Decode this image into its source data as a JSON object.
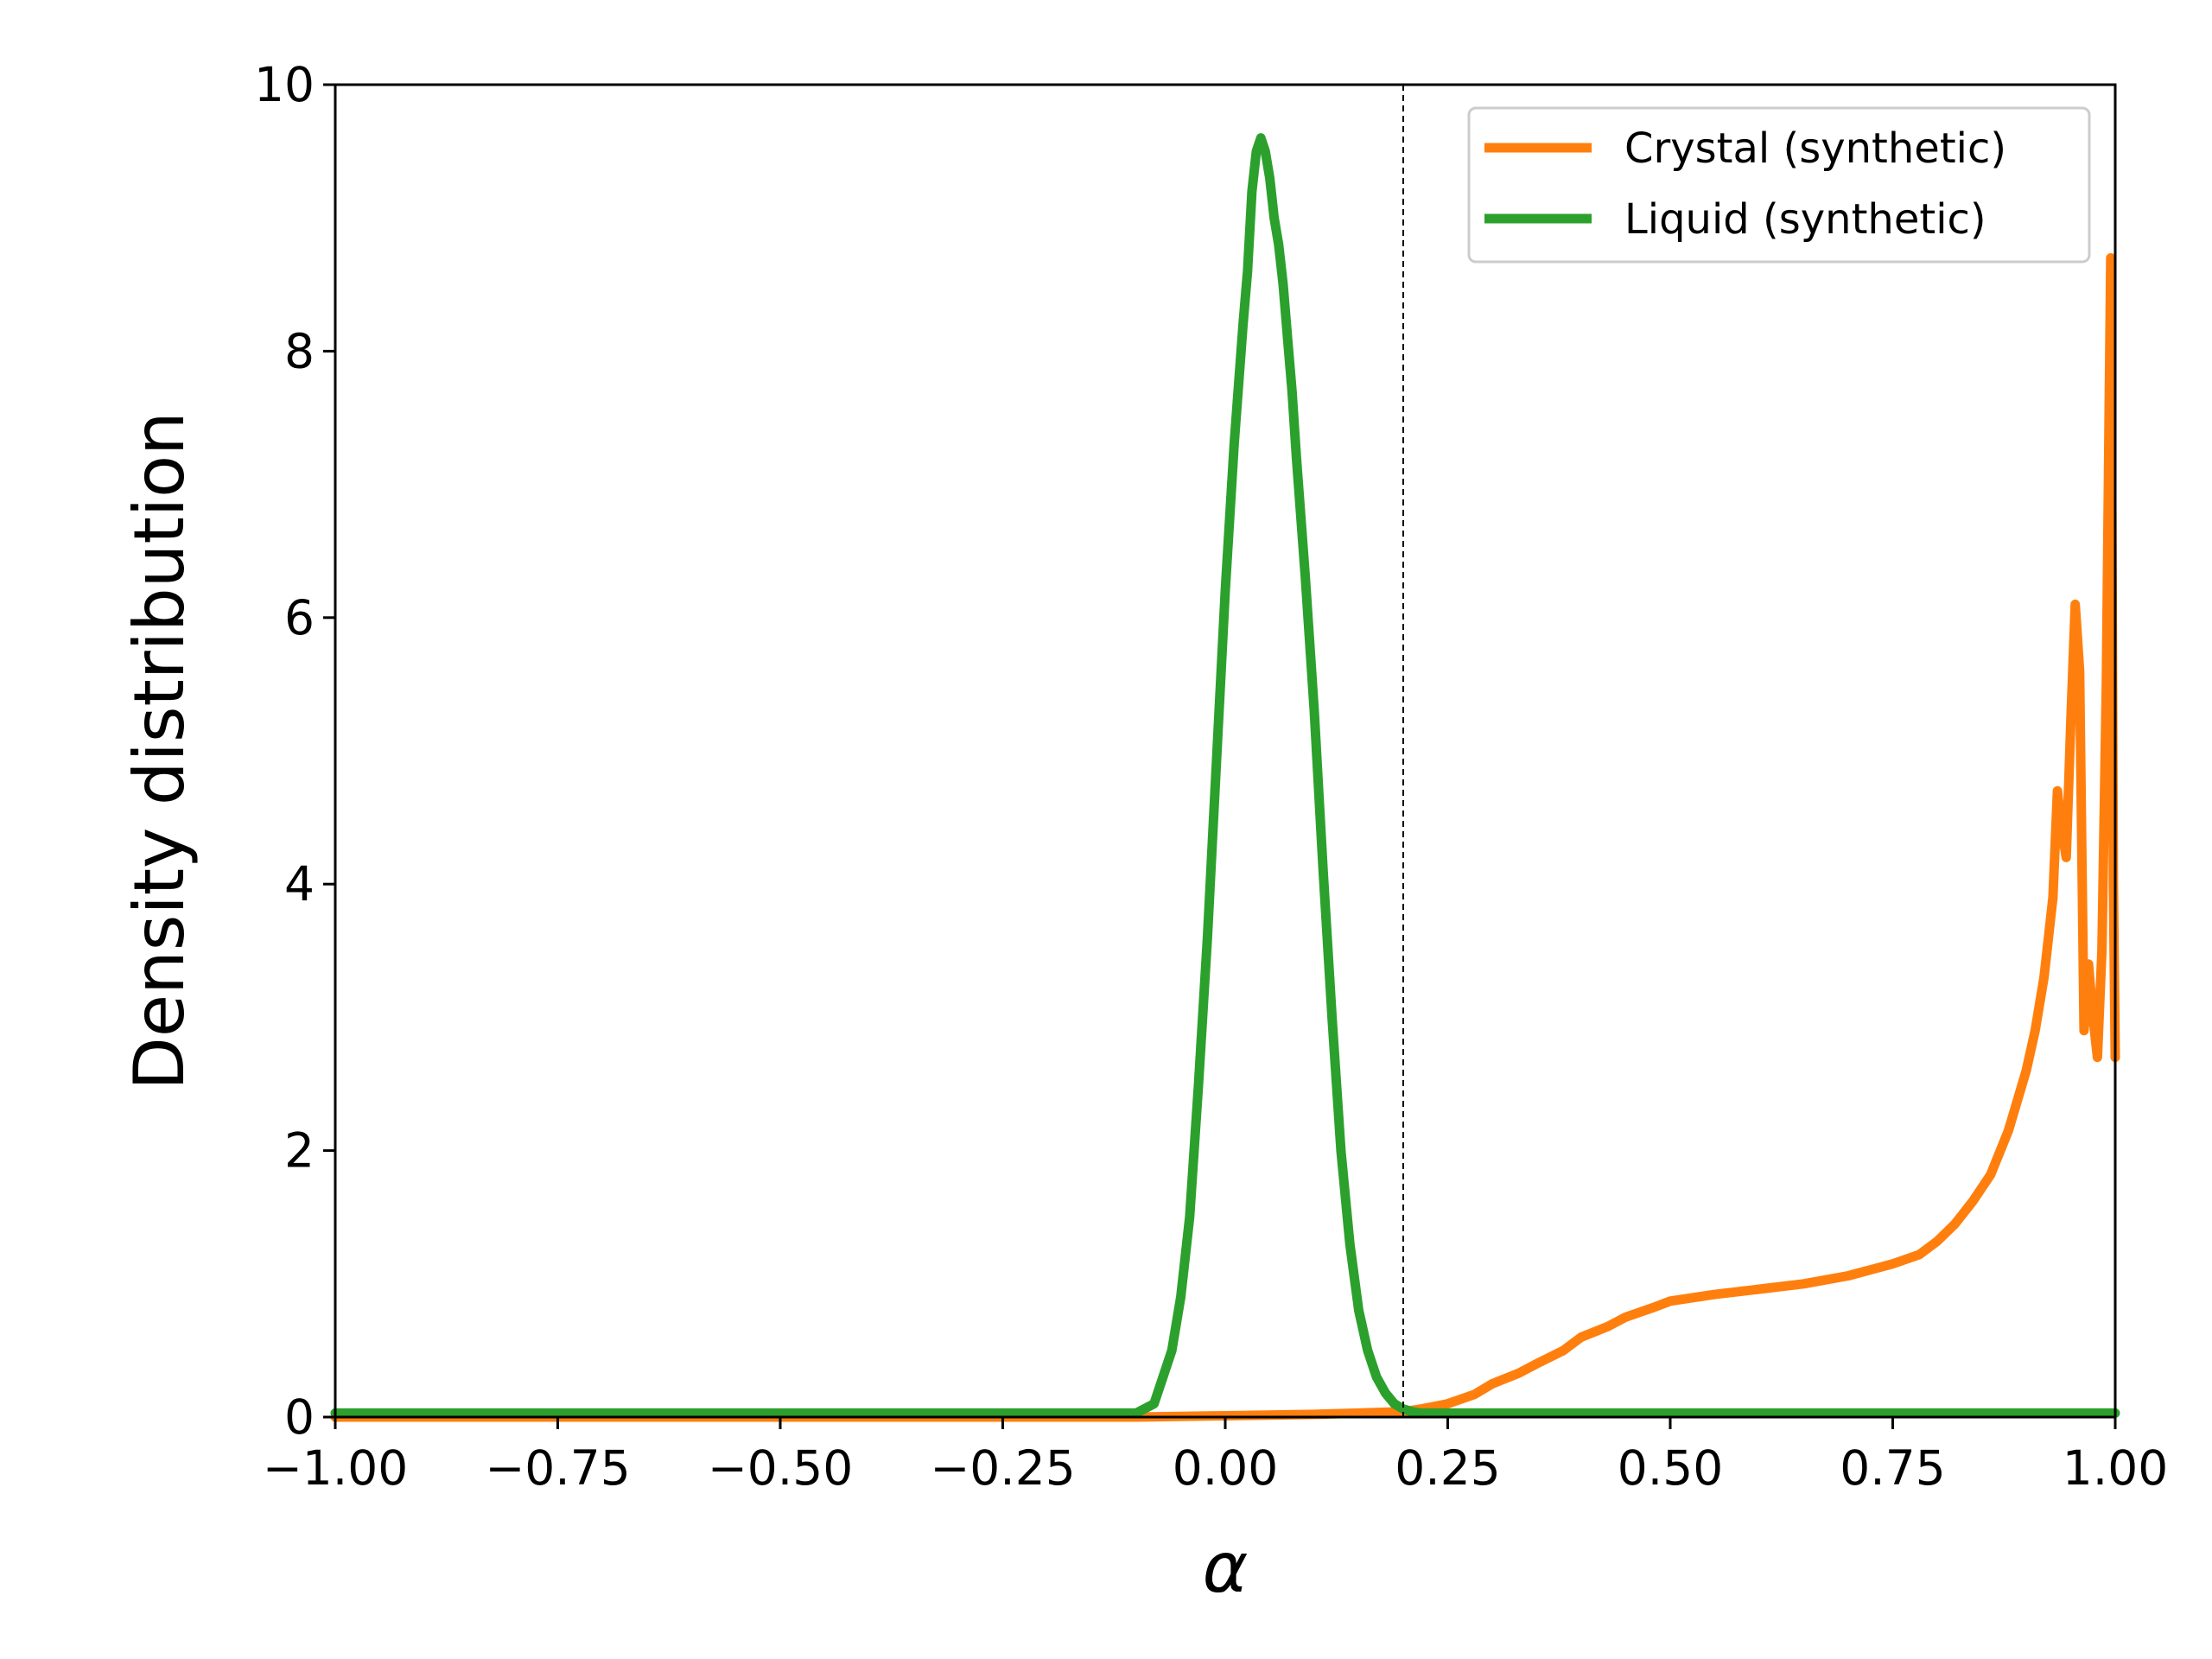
{
  "chart_data": {
    "type": "line",
    "xlabel": "α",
    "ylabel": "Density distribution",
    "xlim": [
      -1.0,
      1.0
    ],
    "ylim": [
      0,
      10
    ],
    "xticks": [
      "−1.00",
      "−0.75",
      "−0.50",
      "−0.25",
      "0.00",
      "0.25",
      "0.50",
      "0.75",
      "1.00"
    ],
    "xtick_values": [
      -1.0,
      -0.75,
      -0.5,
      -0.25,
      0.0,
      0.25,
      0.5,
      0.75,
      1.0
    ],
    "yticks": [
      "0",
      "2",
      "4",
      "6",
      "8",
      "10"
    ],
    "ytick_values": [
      0,
      2,
      4,
      6,
      8,
      10
    ],
    "grid": false,
    "legend_position": "top-right",
    "vline": {
      "x": 0.2,
      "style": "dashed",
      "color": "#000000"
    },
    "series": [
      {
        "name": "Crystal (synthetic)",
        "color": "#ff7f0e",
        "x": [
          -1.0,
          -0.5,
          -0.1,
          0.0,
          0.1,
          0.15,
          0.2,
          0.22,
          0.25,
          0.28,
          0.3,
          0.33,
          0.35,
          0.38,
          0.4,
          0.43,
          0.45,
          0.48,
          0.5,
          0.55,
          0.6,
          0.65,
          0.7,
          0.75,
          0.78,
          0.8,
          0.82,
          0.84,
          0.86,
          0.88,
          0.9,
          0.91,
          0.92,
          0.93,
          0.935,
          0.94,
          0.945,
          0.95,
          0.955,
          0.96,
          0.965,
          0.97,
          0.975,
          0.98,
          0.985,
          0.99,
          0.995,
          0.998,
          1.0
        ],
        "y": [
          0,
          0,
          0,
          0.01,
          0.02,
          0.03,
          0.04,
          0.06,
          0.1,
          0.17,
          0.25,
          0.33,
          0.4,
          0.5,
          0.6,
          0.68,
          0.75,
          0.82,
          0.87,
          0.92,
          0.96,
          1.0,
          1.06,
          1.15,
          1.22,
          1.32,
          1.45,
          1.62,
          1.82,
          2.15,
          2.6,
          2.9,
          3.3,
          3.9,
          4.7,
          4.4,
          4.2,
          5.2,
          6.1,
          5.6,
          2.9,
          3.4,
          3.0,
          2.7,
          3.5,
          5.5,
          8.7,
          4.0,
          2.7
        ]
      },
      {
        "name": "Liquid (synthetic)",
        "color": "#2ca02c",
        "x": [
          -1.0,
          -0.25,
          -0.1,
          -0.08,
          -0.07,
          -0.06,
          -0.05,
          -0.04,
          -0.03,
          -0.02,
          -0.01,
          0.0,
          0.01,
          0.02,
          0.025,
          0.03,
          0.035,
          0.04,
          0.045,
          0.05,
          0.055,
          0.06,
          0.065,
          0.07,
          0.075,
          0.08,
          0.09,
          0.1,
          0.11,
          0.12,
          0.13,
          0.14,
          0.15,
          0.16,
          0.17,
          0.18,
          0.19,
          0.2,
          0.21,
          0.22,
          0.25,
          0.3,
          0.5,
          1.0
        ],
        "y": [
          0.03,
          0.03,
          0.03,
          0.1,
          0.3,
          0.5,
          0.9,
          1.5,
          2.5,
          3.6,
          4.9,
          6.2,
          7.3,
          8.2,
          8.6,
          9.2,
          9.5,
          9.6,
          9.5,
          9.3,
          9.0,
          8.8,
          8.5,
          8.1,
          7.7,
          7.2,
          6.3,
          5.3,
          4.1,
          3.0,
          2.0,
          1.3,
          0.8,
          0.5,
          0.3,
          0.18,
          0.1,
          0.06,
          0.04,
          0.03,
          0.03,
          0.03,
          0.03,
          0.03
        ]
      }
    ]
  }
}
